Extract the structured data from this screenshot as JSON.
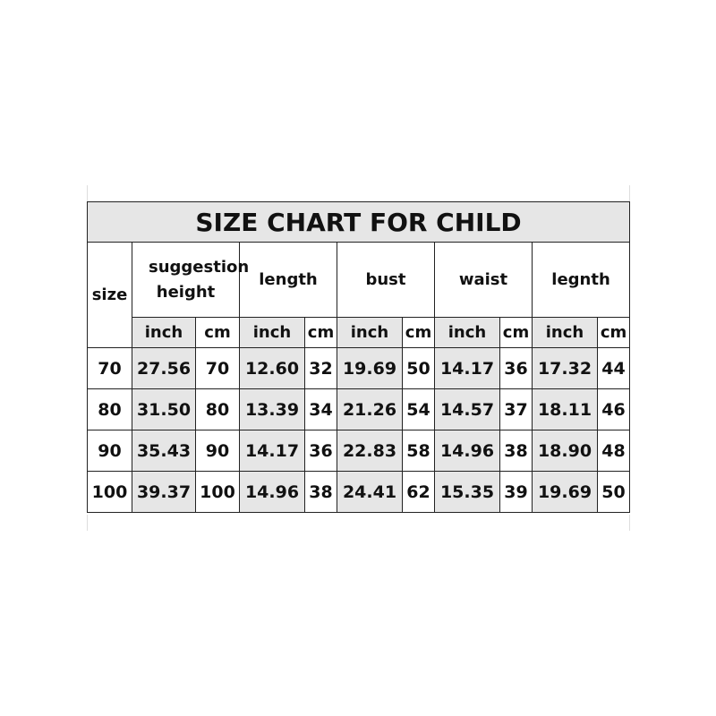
{
  "title": "SIZE CHART FOR CHILD",
  "headers": {
    "size": "size",
    "groups": [
      "suggestion height",
      "length",
      "bust",
      "waist",
      "legnth"
    ],
    "units": [
      "inch",
      "cm"
    ]
  },
  "rows": [
    [
      "70",
      "27.56",
      "70",
      "12.60",
      "32",
      "19.69",
      "50",
      "14.17",
      "36",
      "17.32",
      "44"
    ],
    [
      "80",
      "31.50",
      "80",
      "13.39",
      "34",
      "21.26",
      "54",
      "14.57",
      "37",
      "18.11",
      "46"
    ],
    [
      "90",
      "35.43",
      "90",
      "14.17",
      "36",
      "22.83",
      "58",
      "14.96",
      "38",
      "18.90",
      "48"
    ],
    [
      "100",
      "39.37",
      "100",
      "14.96",
      "38",
      "24.41",
      "62",
      "15.35",
      "39",
      "19.69",
      "50"
    ]
  ],
  "colors": {
    "shade": "#e6e6e6",
    "border": "#222222"
  }
}
